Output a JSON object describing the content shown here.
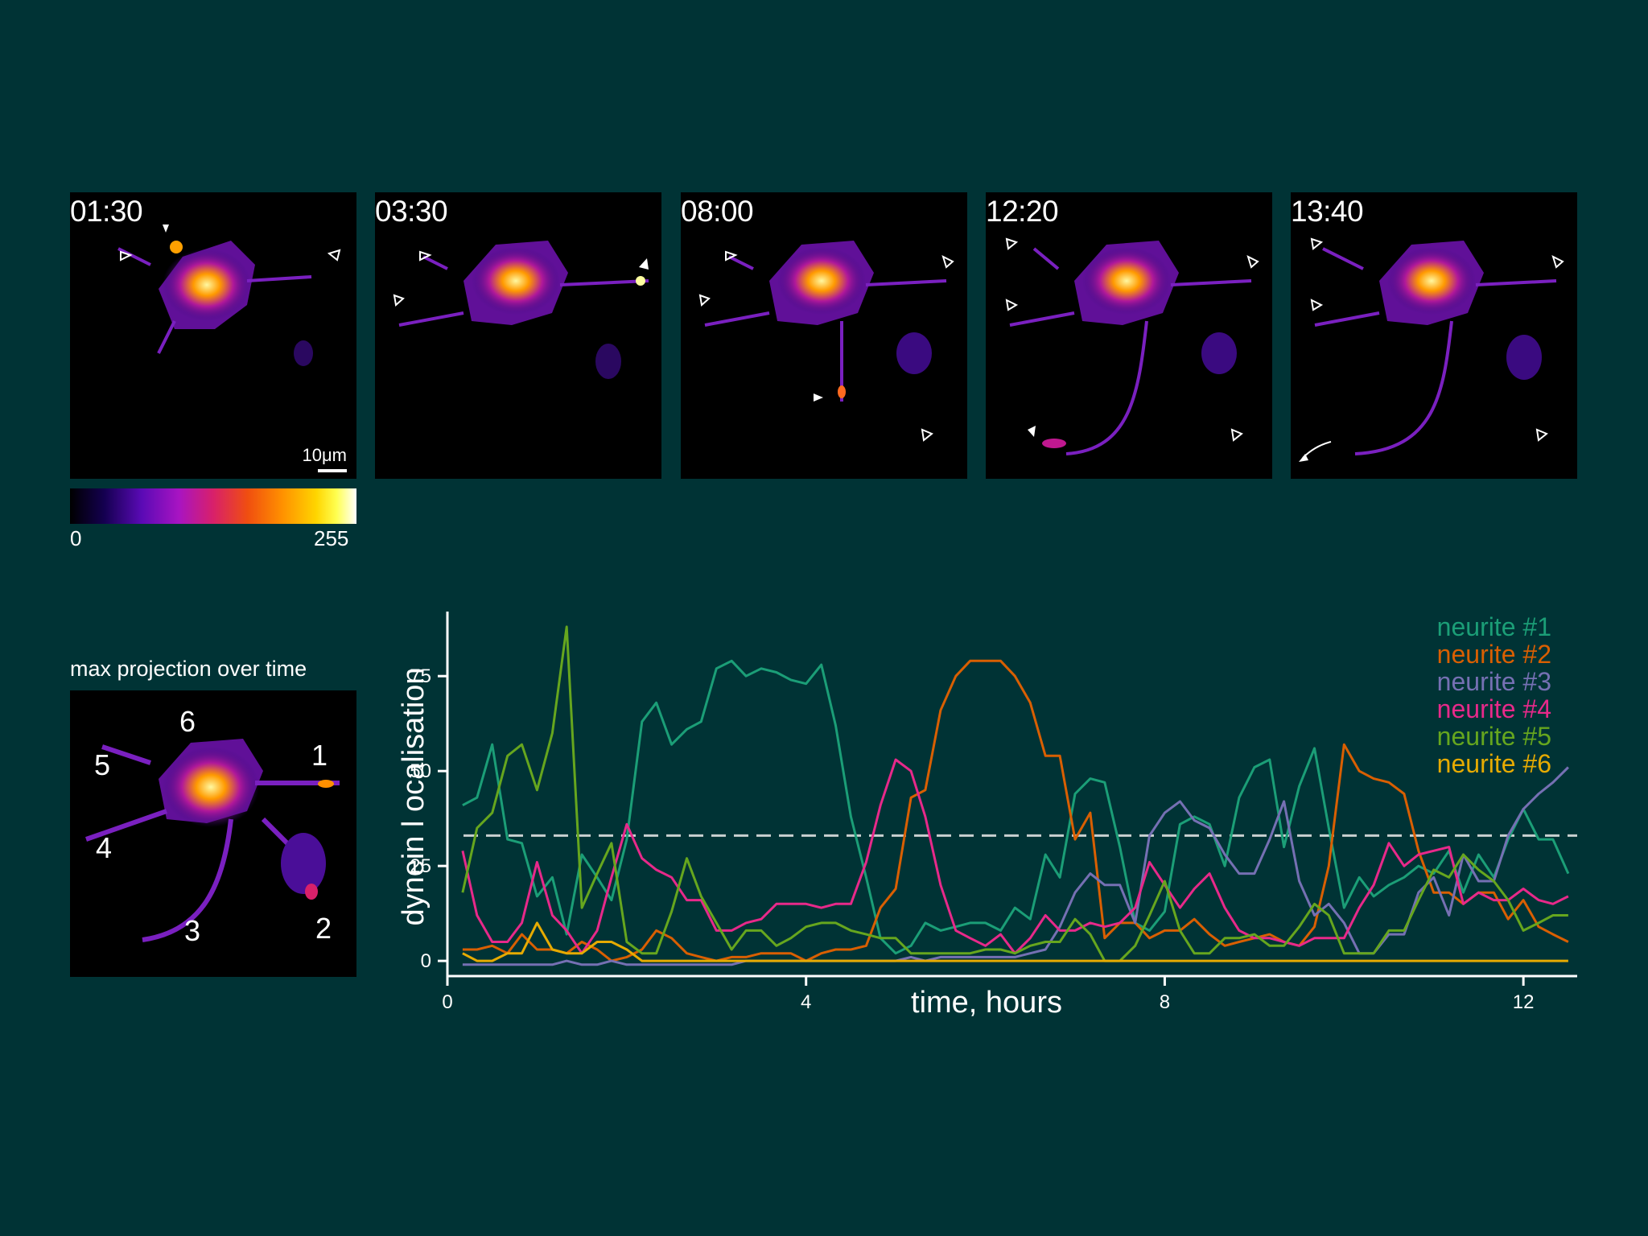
{
  "frames": [
    {
      "time": "01:30"
    },
    {
      "time": "03:30"
    },
    {
      "time": "08:00"
    },
    {
      "time": "12:20"
    },
    {
      "time": "13:40"
    }
  ],
  "scale_bar_label": "10μm",
  "colorbar": {
    "min_label": "0",
    "max_label": "255"
  },
  "max_projection": {
    "title": "max projection over time",
    "neurite_labels": [
      "1",
      "2",
      "3",
      "4",
      "5",
      "6"
    ]
  },
  "colors": {
    "background": "#003335",
    "neurite_1": "#1b9e77",
    "neurite_2": "#d95f02",
    "neurite_3": "#7570b3",
    "neurite_4": "#e7298a",
    "neurite_5": "#66a61e",
    "neurite_6": "#e6ab02",
    "threshold": "#c8d0d0"
  },
  "chart_data": {
    "type": "line",
    "xlabel": "time, hours",
    "ylabel": "dynein l ocalisation",
    "xlim": [
      0,
      12.6
    ],
    "ylim": [
      -4,
      92
    ],
    "xticks": [
      0,
      4,
      8,
      12
    ],
    "yticks": [
      0,
      25,
      50,
      75
    ],
    "threshold": 33,
    "x": [
      0.17,
      0.33,
      0.5,
      0.67,
      0.83,
      1.0,
      1.17,
      1.33,
      1.5,
      1.67,
      1.83,
      2.0,
      2.17,
      2.33,
      2.5,
      2.67,
      2.83,
      3.0,
      3.17,
      3.33,
      3.5,
      3.67,
      3.83,
      4.0,
      4.17,
      4.33,
      4.5,
      4.67,
      4.83,
      5.0,
      5.17,
      5.33,
      5.5,
      5.67,
      5.83,
      6.0,
      6.17,
      6.33,
      6.5,
      6.67,
      6.83,
      7.0,
      7.17,
      7.33,
      7.5,
      7.67,
      7.83,
      8.0,
      8.17,
      8.33,
      8.5,
      8.67,
      8.83,
      9.0,
      9.17,
      9.33,
      9.5,
      9.67,
      9.83,
      10.0,
      10.17,
      10.33,
      10.5,
      10.67,
      10.83,
      11.0,
      11.17,
      11.33,
      11.5,
      11.67,
      11.83,
      12.0,
      12.17,
      12.33,
      12.5
    ],
    "series": [
      {
        "name": "neurite #1",
        "values": [
          41,
          43,
          57,
          32,
          31,
          17,
          22,
          7,
          28,
          22,
          16,
          32,
          63,
          68,
          57,
          61,
          63,
          77,
          79,
          75,
          77,
          76,
          74,
          73,
          78,
          62,
          38,
          22,
          6,
          2,
          4,
          10,
          8,
          9,
          10,
          10,
          8,
          14,
          11,
          28,
          22,
          44,
          48,
          47,
          30,
          10,
          8,
          13,
          36,
          38,
          36,
          25,
          43,
          51,
          53,
          30,
          46,
          56,
          35,
          14,
          22,
          17,
          20,
          22,
          25,
          23,
          29,
          18,
          28,
          22,
          32,
          40,
          32,
          32,
          23
        ]
      },
      {
        "name": "neurite #2",
        "values": [
          3,
          3,
          4,
          2,
          7,
          3,
          3,
          2,
          5,
          3,
          0,
          1,
          3,
          8,
          6,
          2,
          1,
          0,
          1,
          1,
          2,
          2,
          2,
          0,
          2,
          3,
          3,
          4,
          14,
          19,
          43,
          45,
          66,
          75,
          79,
          79,
          79,
          75,
          68,
          54,
          54,
          32,
          39,
          6,
          10,
          10,
          6,
          8,
          8,
          11,
          7,
          4,
          5,
          6,
          7,
          5,
          4,
          9,
          25,
          57,
          50,
          48,
          47,
          44,
          29,
          18,
          18,
          15,
          18,
          18,
          11,
          16,
          9,
          7,
          5
        ]
      },
      {
        "name": "neurite #3",
        "values": [
          -1,
          -1,
          -1,
          -1,
          -1,
          -1,
          -1,
          0,
          -1,
          -1,
          0,
          -1,
          -1,
          -1,
          -1,
          -1,
          -1,
          -1,
          -1,
          0,
          0,
          0,
          0,
          0,
          0,
          0,
          0,
          0,
          0,
          0,
          1,
          0,
          1,
          1,
          1,
          1,
          1,
          1,
          2,
          3,
          9,
          18,
          23,
          20,
          20,
          10,
          33,
          39,
          42,
          37,
          35,
          28,
          23,
          23,
          32,
          42,
          21,
          12,
          15,
          10,
          2,
          2,
          7,
          7,
          18,
          22,
          12,
          28,
          21,
          21,
          33,
          40,
          44,
          47,
          51
        ]
      },
      {
        "name": "neurite #4",
        "values": [
          29,
          12,
          5,
          5,
          10,
          26,
          12,
          8,
          2,
          8,
          22,
          36,
          27,
          24,
          22,
          16,
          16,
          8,
          8,
          10,
          11,
          15,
          15,
          15,
          14,
          15,
          15,
          26,
          41,
          53,
          50,
          38,
          20,
          8,
          6,
          4,
          7,
          2,
          6,
          12,
          8,
          8,
          10,
          9,
          10,
          14,
          26,
          20,
          14,
          19,
          23,
          14,
          8,
          6,
          6,
          5,
          4,
          6,
          6,
          6,
          14,
          20,
          31,
          25,
          28,
          29,
          30,
          15,
          18,
          16,
          16,
          19,
          16,
          15,
          17
        ]
      },
      {
        "name": "neurite #5",
        "values": [
          18,
          35,
          39,
          54,
          57,
          45,
          60,
          88,
          14,
          23,
          31,
          5,
          2,
          2,
          13,
          27,
          17,
          10,
          3,
          8,
          8,
          4,
          6,
          9,
          10,
          10,
          8,
          7,
          6,
          6,
          2,
          2,
          2,
          2,
          2,
          3,
          3,
          2,
          4,
          5,
          5,
          11,
          7,
          0,
          0,
          4,
          12,
          21,
          8,
          2,
          2,
          6,
          6,
          7,
          4,
          4,
          9,
          15,
          12,
          2,
          2,
          2,
          8,
          8,
          16,
          24,
          22,
          28,
          24,
          21,
          16,
          8,
          10,
          12,
          12
        ]
      },
      {
        "name": "neurite #6",
        "values": [
          2,
          0,
          0,
          2,
          2,
          10,
          3,
          2,
          2,
          5,
          5,
          3,
          0,
          0,
          0,
          0,
          0,
          0,
          0,
          0,
          0,
          0,
          0,
          0,
          0,
          0,
          0,
          0,
          0,
          0,
          0,
          0,
          0,
          0,
          0,
          0,
          0,
          0,
          0,
          0,
          0,
          0,
          0,
          0,
          0,
          0,
          0,
          0,
          0,
          0,
          0,
          0,
          0,
          0,
          0,
          0,
          0,
          0,
          0,
          0,
          0,
          0,
          0,
          0,
          0,
          0,
          0,
          0,
          0,
          0,
          0,
          0,
          0,
          0,
          0
        ]
      }
    ]
  }
}
